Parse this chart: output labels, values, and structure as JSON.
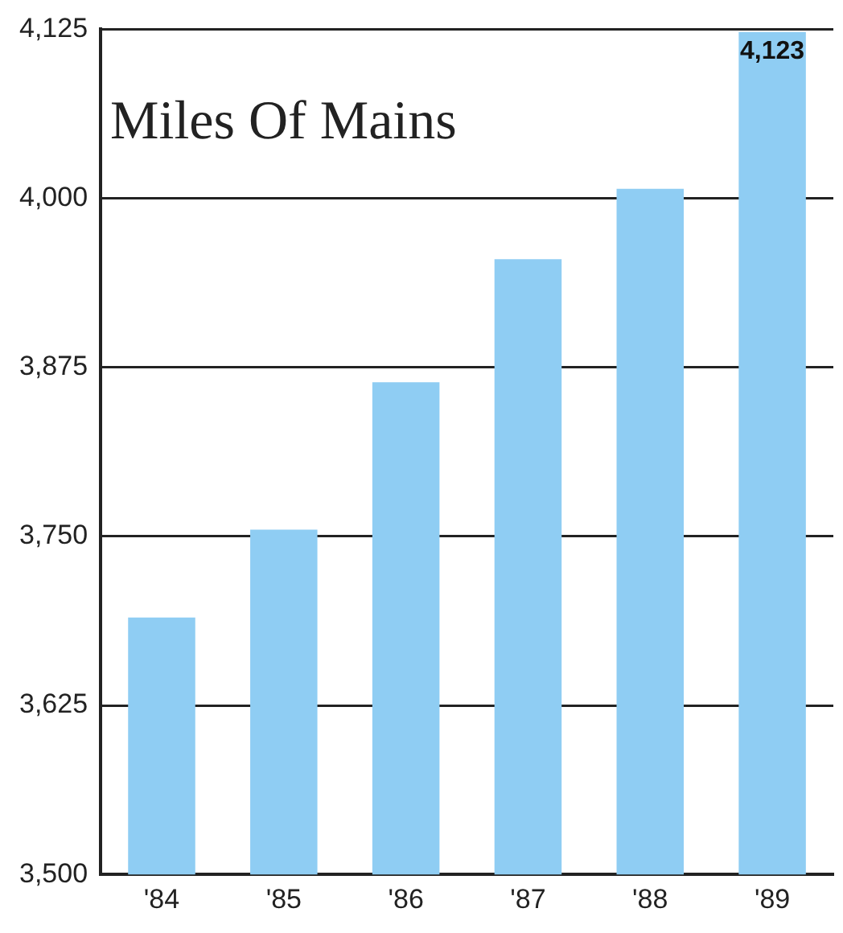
{
  "chart_data": {
    "type": "bar",
    "title": "Miles Of Mains",
    "categories": [
      "'84",
      "'85",
      "'86",
      "'87",
      "'88",
      "'89"
    ],
    "values": [
      3690,
      3755,
      3864,
      3955,
      4007,
      4123
    ],
    "value_labels": [
      null,
      null,
      null,
      null,
      null,
      "4,123"
    ],
    "color": "#8fcdf3",
    "ylim": [
      3500,
      4125
    ],
    "yticks": [
      {
        "value": 3500,
        "label": "3,500"
      },
      {
        "value": 3625,
        "label": "3,625"
      },
      {
        "value": 3750,
        "label": "3,750"
      },
      {
        "value": 3875,
        "label": "3,875"
      },
      {
        "value": 4000,
        "label": "4,000"
      },
      {
        "value": 4125,
        "label": "4,125"
      }
    ],
    "grid": "y"
  }
}
